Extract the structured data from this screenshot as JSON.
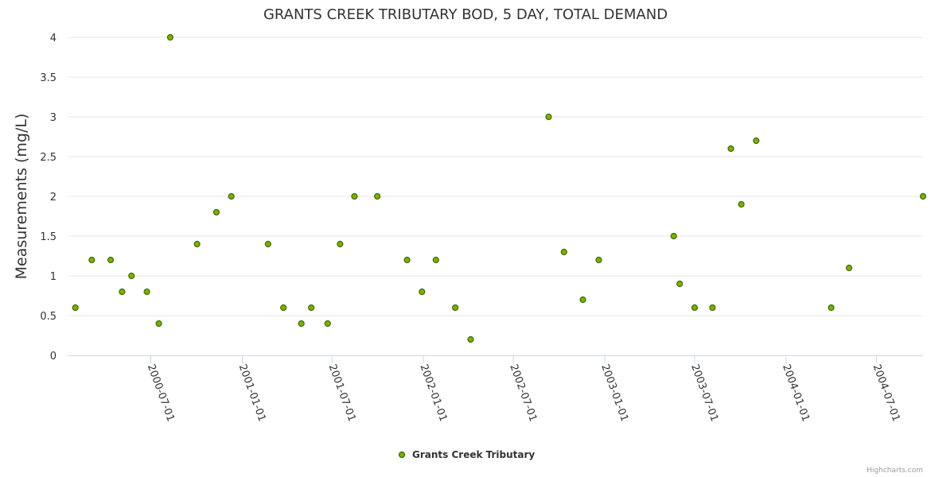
{
  "colors": {
    "marker_fill": "#7cb000",
    "marker_stroke": "#3d6b00",
    "grid": "#e6e6e6",
    "axis": "#ccd6eb",
    "text": "#333333"
  },
  "credits": "Highcharts.com",
  "chart_data": {
    "type": "scatter",
    "title": "GRANTS CREEK TRIBUTARY BOD, 5 DAY, TOTAL DEMAND",
    "xlabel": "",
    "ylabel": "Measurements (mg/L)",
    "ylim": [
      0,
      4
    ],
    "yticks": [
      "0",
      "0.5",
      "1",
      "1.5",
      "2",
      "2.5",
      "3",
      "3.5",
      "4"
    ],
    "xlim": [
      "2000-01-17",
      "2004-10-03"
    ],
    "xticks": [
      "2000-07-01",
      "2001-01-01",
      "2001-07-01",
      "2002-01-01",
      "2002-07-01",
      "2003-01-01",
      "2003-07-01",
      "2004-01-01",
      "2004-07-01"
    ],
    "grid": true,
    "legend": "bottom-center",
    "series": [
      {
        "name": "Grants Creek Tributary",
        "points": [
          {
            "x": "2000-01-31",
            "y": 0.6
          },
          {
            "x": "2000-03-04",
            "y": 1.2
          },
          {
            "x": "2000-04-11",
            "y": 1.2
          },
          {
            "x": "2000-05-04",
            "y": 0.8
          },
          {
            "x": "2000-05-23",
            "y": 1.0
          },
          {
            "x": "2000-06-23",
            "y": 0.8
          },
          {
            "x": "2000-07-17",
            "y": 0.4
          },
          {
            "x": "2000-08-09",
            "y": 4.0
          },
          {
            "x": "2000-10-02",
            "y": 1.4
          },
          {
            "x": "2000-11-10",
            "y": 1.8
          },
          {
            "x": "2000-12-10",
            "y": 2.0
          },
          {
            "x": "2001-02-22",
            "y": 1.4
          },
          {
            "x": "2001-03-25",
            "y": 0.6
          },
          {
            "x": "2001-04-30",
            "y": 0.4
          },
          {
            "x": "2001-05-20",
            "y": 0.6
          },
          {
            "x": "2001-06-22",
            "y": 0.4
          },
          {
            "x": "2001-07-17",
            "y": 1.4
          },
          {
            "x": "2001-08-15",
            "y": 2.0
          },
          {
            "x": "2001-09-30",
            "y": 2.0
          },
          {
            "x": "2001-11-29",
            "y": 1.2
          },
          {
            "x": "2001-12-29",
            "y": 0.8
          },
          {
            "x": "2002-01-26",
            "y": 1.2
          },
          {
            "x": "2002-03-06",
            "y": 0.6
          },
          {
            "x": "2002-04-06",
            "y": 0.2
          },
          {
            "x": "2002-09-10",
            "y": 3.0
          },
          {
            "x": "2002-10-11",
            "y": 1.3
          },
          {
            "x": "2002-11-18",
            "y": 0.7
          },
          {
            "x": "2002-12-20",
            "y": 1.2
          },
          {
            "x": "2003-05-20",
            "y": 1.5
          },
          {
            "x": "2003-06-01",
            "y": 0.9
          },
          {
            "x": "2003-07-01",
            "y": 0.6
          },
          {
            "x": "2003-08-06",
            "y": 0.6
          },
          {
            "x": "2003-09-12",
            "y": 2.6
          },
          {
            "x": "2003-10-03",
            "y": 1.9
          },
          {
            "x": "2003-11-02",
            "y": 2.7
          },
          {
            "x": "2004-04-01",
            "y": 0.6
          },
          {
            "x": "2004-05-07",
            "y": 1.1
          },
          {
            "x": "2004-10-03",
            "y": 2.0
          }
        ]
      }
    ]
  }
}
